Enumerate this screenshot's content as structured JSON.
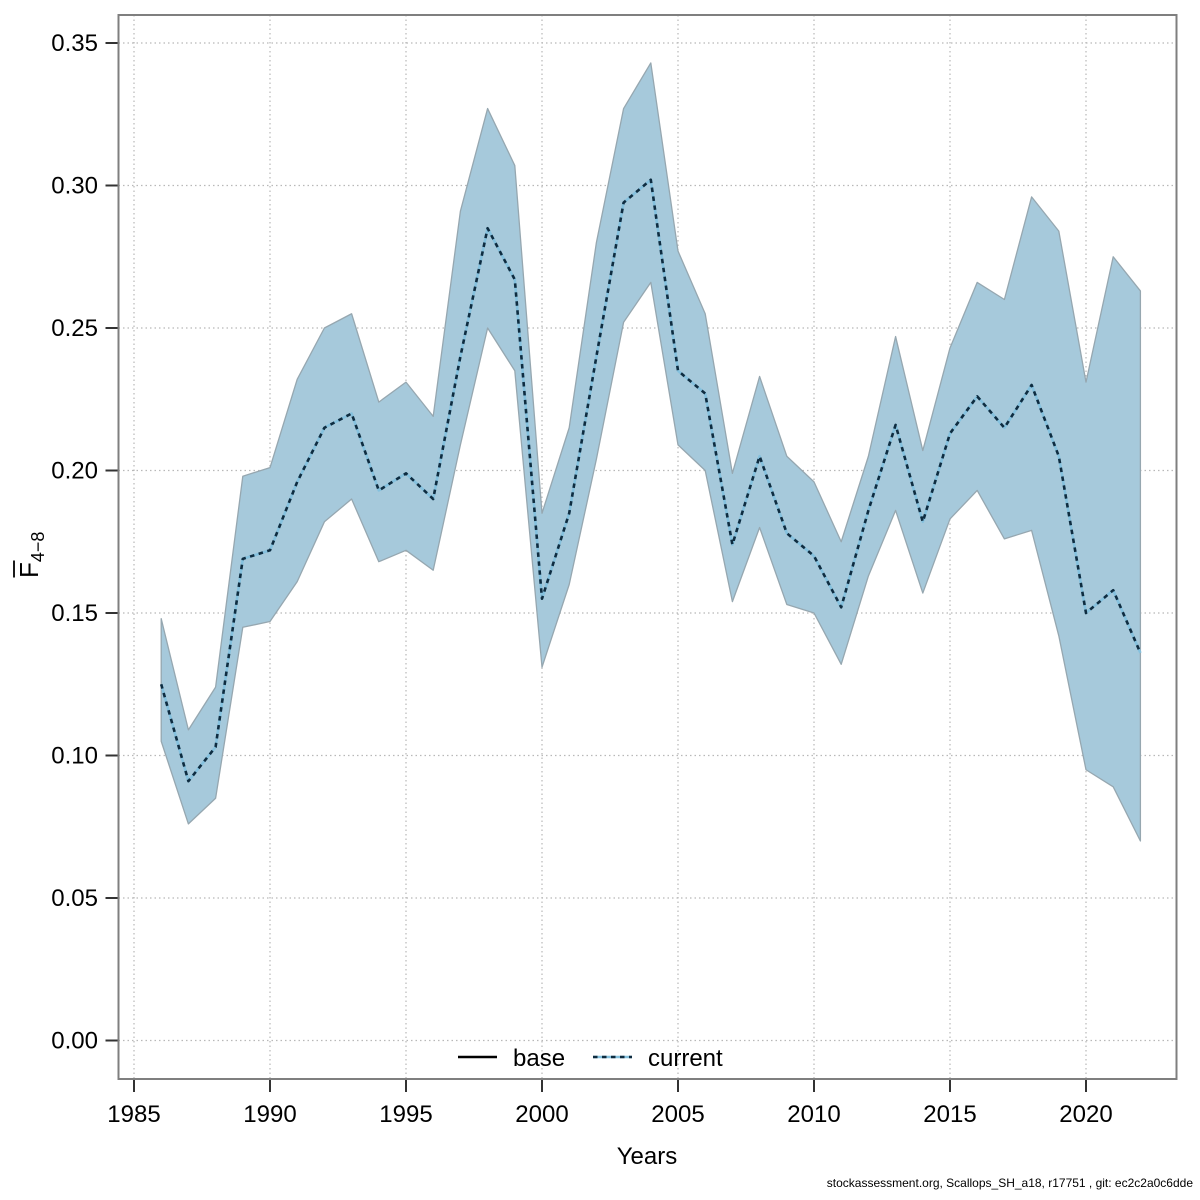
{
  "chart_data": {
    "type": "line",
    "title": "",
    "xlabel": "Years",
    "ylabel_main": "F",
    "ylabel_sub": "4−8",
    "ylabel_overbar": true,
    "x_ticks": [
      1985,
      1990,
      1995,
      2000,
      2005,
      2010,
      2015,
      2020
    ],
    "y_ticks": [
      "0.00",
      "0.05",
      "0.10",
      "0.15",
      "0.20",
      "0.25",
      "0.30",
      "0.35"
    ],
    "xlim": [
      1984.4,
      2023.3
    ],
    "ylim": [
      -0.013,
      0.36
    ],
    "grid": true,
    "legend_position": "bottom-center-inside",
    "legend": [
      {
        "label": "base",
        "line_style": "solid",
        "color": "#000000"
      },
      {
        "label": "current",
        "line_style": "dotted",
        "color": "#0e2c40"
      }
    ],
    "x": [
      1986,
      1987,
      1988,
      1989,
      1990,
      1991,
      1992,
      1993,
      1994,
      1995,
      1996,
      1997,
      1998,
      1999,
      2000,
      2001,
      2002,
      2003,
      2004,
      2005,
      2006,
      2007,
      2008,
      2009,
      2010,
      2011,
      2012,
      2013,
      2014,
      2015,
      2016,
      2017,
      2018,
      2019,
      2020,
      2021,
      2022
    ],
    "series": [
      {
        "name": "current",
        "values": [
          0.125,
          0.091,
          0.103,
          0.169,
          0.172,
          0.196,
          0.215,
          0.22,
          0.193,
          0.199,
          0.19,
          0.24,
          0.285,
          0.267,
          0.155,
          0.185,
          0.24,
          0.294,
          0.302,
          0.235,
          0.227,
          0.174,
          0.205,
          0.178,
          0.17,
          0.152,
          0.186,
          0.216,
          0.182,
          0.213,
          0.226,
          0.215,
          0.23,
          0.205,
          0.15,
          0.158,
          0.136
        ],
        "ci_low": [
          0.105,
          0.076,
          0.085,
          0.145,
          0.147,
          0.161,
          0.182,
          0.19,
          0.168,
          0.172,
          0.165,
          0.209,
          0.25,
          0.235,
          0.131,
          0.16,
          0.204,
          0.252,
          0.266,
          0.209,
          0.2,
          0.154,
          0.18,
          0.153,
          0.15,
          0.132,
          0.163,
          0.186,
          0.157,
          0.183,
          0.193,
          0.176,
          0.179,
          0.142,
          0.095,
          0.089,
          0.07
        ],
        "ci_high": [
          0.148,
          0.109,
          0.124,
          0.198,
          0.201,
          0.232,
          0.25,
          0.255,
          0.224,
          0.231,
          0.219,
          0.291,
          0.327,
          0.307,
          0.185,
          0.215,
          0.28,
          0.327,
          0.343,
          0.277,
          0.255,
          0.199,
          0.233,
          0.205,
          0.196,
          0.175,
          0.205,
          0.247,
          0.207,
          0.243,
          0.266,
          0.26,
          0.296,
          0.284,
          0.231,
          0.275,
          0.263
        ]
      },
      {
        "name": "base",
        "visible_as_separate_line": false
      }
    ],
    "colors": {
      "band_fill": "#a6c9db",
      "band_edge": "#96a7b0",
      "line_light": "#85c1de",
      "line_dark": "#0e2c40",
      "grid": "#b8b8b8",
      "box_border": "#7f7f7f",
      "tick": "#333333"
    }
  },
  "footer": {
    "caption": "stockassessment.org, Scallops_SH_a18, r17751 , git: ec2c2a0c6dde"
  }
}
